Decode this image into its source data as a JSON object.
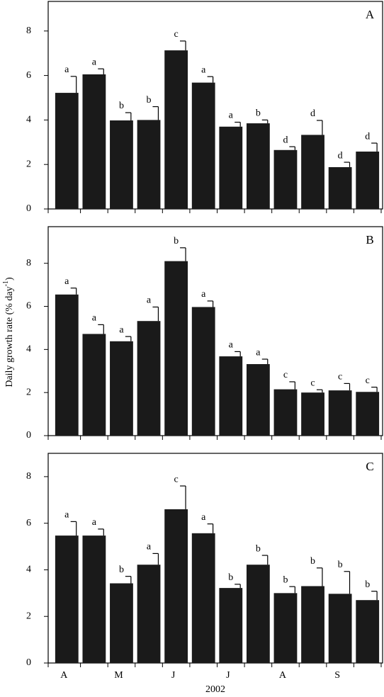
{
  "chart_data": [
    {
      "type": "bar",
      "panel_label": "A",
      "color": "#1a1a1a",
      "values": [
        5.22,
        6.05,
        3.98,
        4.0,
        7.13,
        5.68,
        3.7,
        3.85,
        2.65,
        3.33,
        1.88,
        2.58
      ],
      "errors": [
        0.74,
        0.25,
        0.35,
        0.6,
        0.42,
        0.27,
        0.2,
        0.15,
        0.15,
        0.65,
        0.22,
        0.38
      ],
      "letters": [
        "a",
        "a",
        "b",
        "b",
        "c",
        "a",
        "a",
        "b",
        "d",
        "d",
        "d",
        "d"
      ],
      "ylim": [
        0,
        9.33
      ],
      "yticks": [
        0,
        2,
        4,
        6,
        8
      ]
    },
    {
      "type": "bar",
      "panel_label": "B",
      "color": "#1a1a1a",
      "ylabel": "Daily growth rate (% day",
      "ylabel_sup": "-1",
      "ylabel_end": ")",
      "values": [
        6.55,
        4.72,
        4.38,
        5.32,
        8.1,
        5.97,
        3.68,
        3.32,
        2.15,
        2.0,
        2.1,
        2.03
      ],
      "errors": [
        0.3,
        0.43,
        0.22,
        0.65,
        0.62,
        0.28,
        0.22,
        0.23,
        0.35,
        0.13,
        0.32,
        0.22
      ],
      "letters": [
        "a",
        "a",
        "a",
        "a",
        "b",
        "a",
        "a",
        "a",
        "c",
        "c",
        "c",
        "c"
      ],
      "ylim": [
        0,
        9.7
      ],
      "yticks": [
        0,
        2,
        4,
        6,
        8
      ]
    },
    {
      "type": "bar",
      "panel_label": "C",
      "color": "#1a1a1a",
      "xlabel": "2002",
      "categories": [
        "A",
        null,
        "M",
        null,
        "J",
        null,
        "J",
        null,
        "A",
        null,
        "S",
        null
      ],
      "values": [
        5.47,
        5.47,
        3.42,
        4.22,
        6.6,
        5.57,
        3.22,
        4.22,
        3.0,
        3.3,
        2.97,
        2.7
      ],
      "errors": [
        0.6,
        0.28,
        0.3,
        0.48,
        1.0,
        0.4,
        0.16,
        0.4,
        0.28,
        0.78,
        0.96,
        0.38
      ],
      "letters": [
        "a",
        "a",
        "b",
        "a",
        "c",
        "a",
        "b",
        "b",
        "b",
        "b",
        "b",
        "b"
      ],
      "ylim": [
        0,
        9.0
      ],
      "yticks": [
        0,
        2,
        4,
        6,
        8
      ]
    }
  ]
}
